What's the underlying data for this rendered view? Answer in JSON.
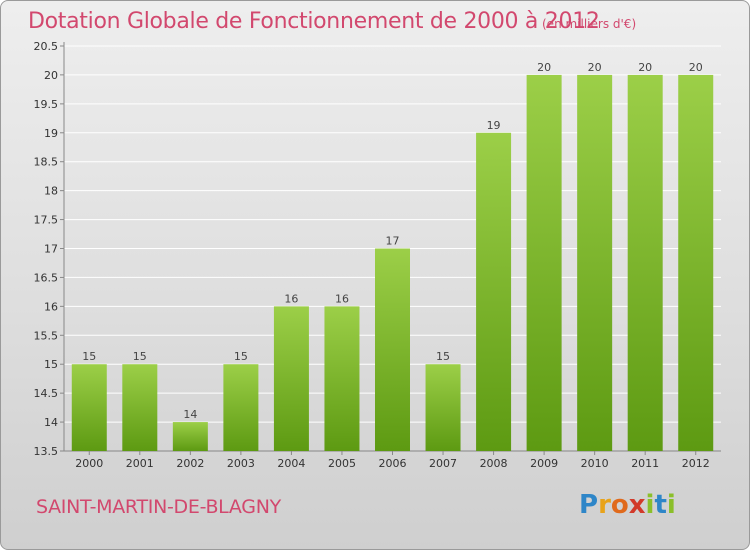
{
  "title": "Dotation Globale de Fonctionnement de 2000 à 2012",
  "subtitle": "(en milliers d'€)",
  "commune": "SAINT-MARTIN-DE-BLAGNY",
  "logo": {
    "letters": [
      "P",
      "r",
      "o",
      "x",
      "i",
      "t",
      "i"
    ],
    "colors": [
      "#2e86c8",
      "#e8a31a",
      "#e06a1c",
      "#d23a2a",
      "#8bbf2a",
      "#2e86c8",
      "#8bbf2a"
    ]
  },
  "colors": {
    "bar_top": "#9ccf48",
    "bar_bottom": "#5d9a12",
    "accent_text": "#d2486e"
  },
  "chart_data": {
    "type": "bar",
    "categories": [
      "2000",
      "2001",
      "2002",
      "2003",
      "2004",
      "2005",
      "2006",
      "2007",
      "2008",
      "2009",
      "2010",
      "2011",
      "2012"
    ],
    "values": [
      15,
      15,
      14,
      15,
      16,
      16,
      17,
      15,
      19,
      20,
      20,
      20,
      20
    ],
    "data_labels": [
      "15",
      "15",
      "14",
      "15",
      "16",
      "16",
      "17",
      "15",
      "19",
      "20",
      "20",
      "20",
      "20"
    ],
    "ylim": [
      13.5,
      20.5
    ],
    "yticks": [
      "13.5",
      "14",
      "14.5",
      "15",
      "15.5",
      "16",
      "16.5",
      "17",
      "17.5",
      "18",
      "18.5",
      "19",
      "19.5",
      "20",
      "20.5"
    ],
    "grid": true
  }
}
